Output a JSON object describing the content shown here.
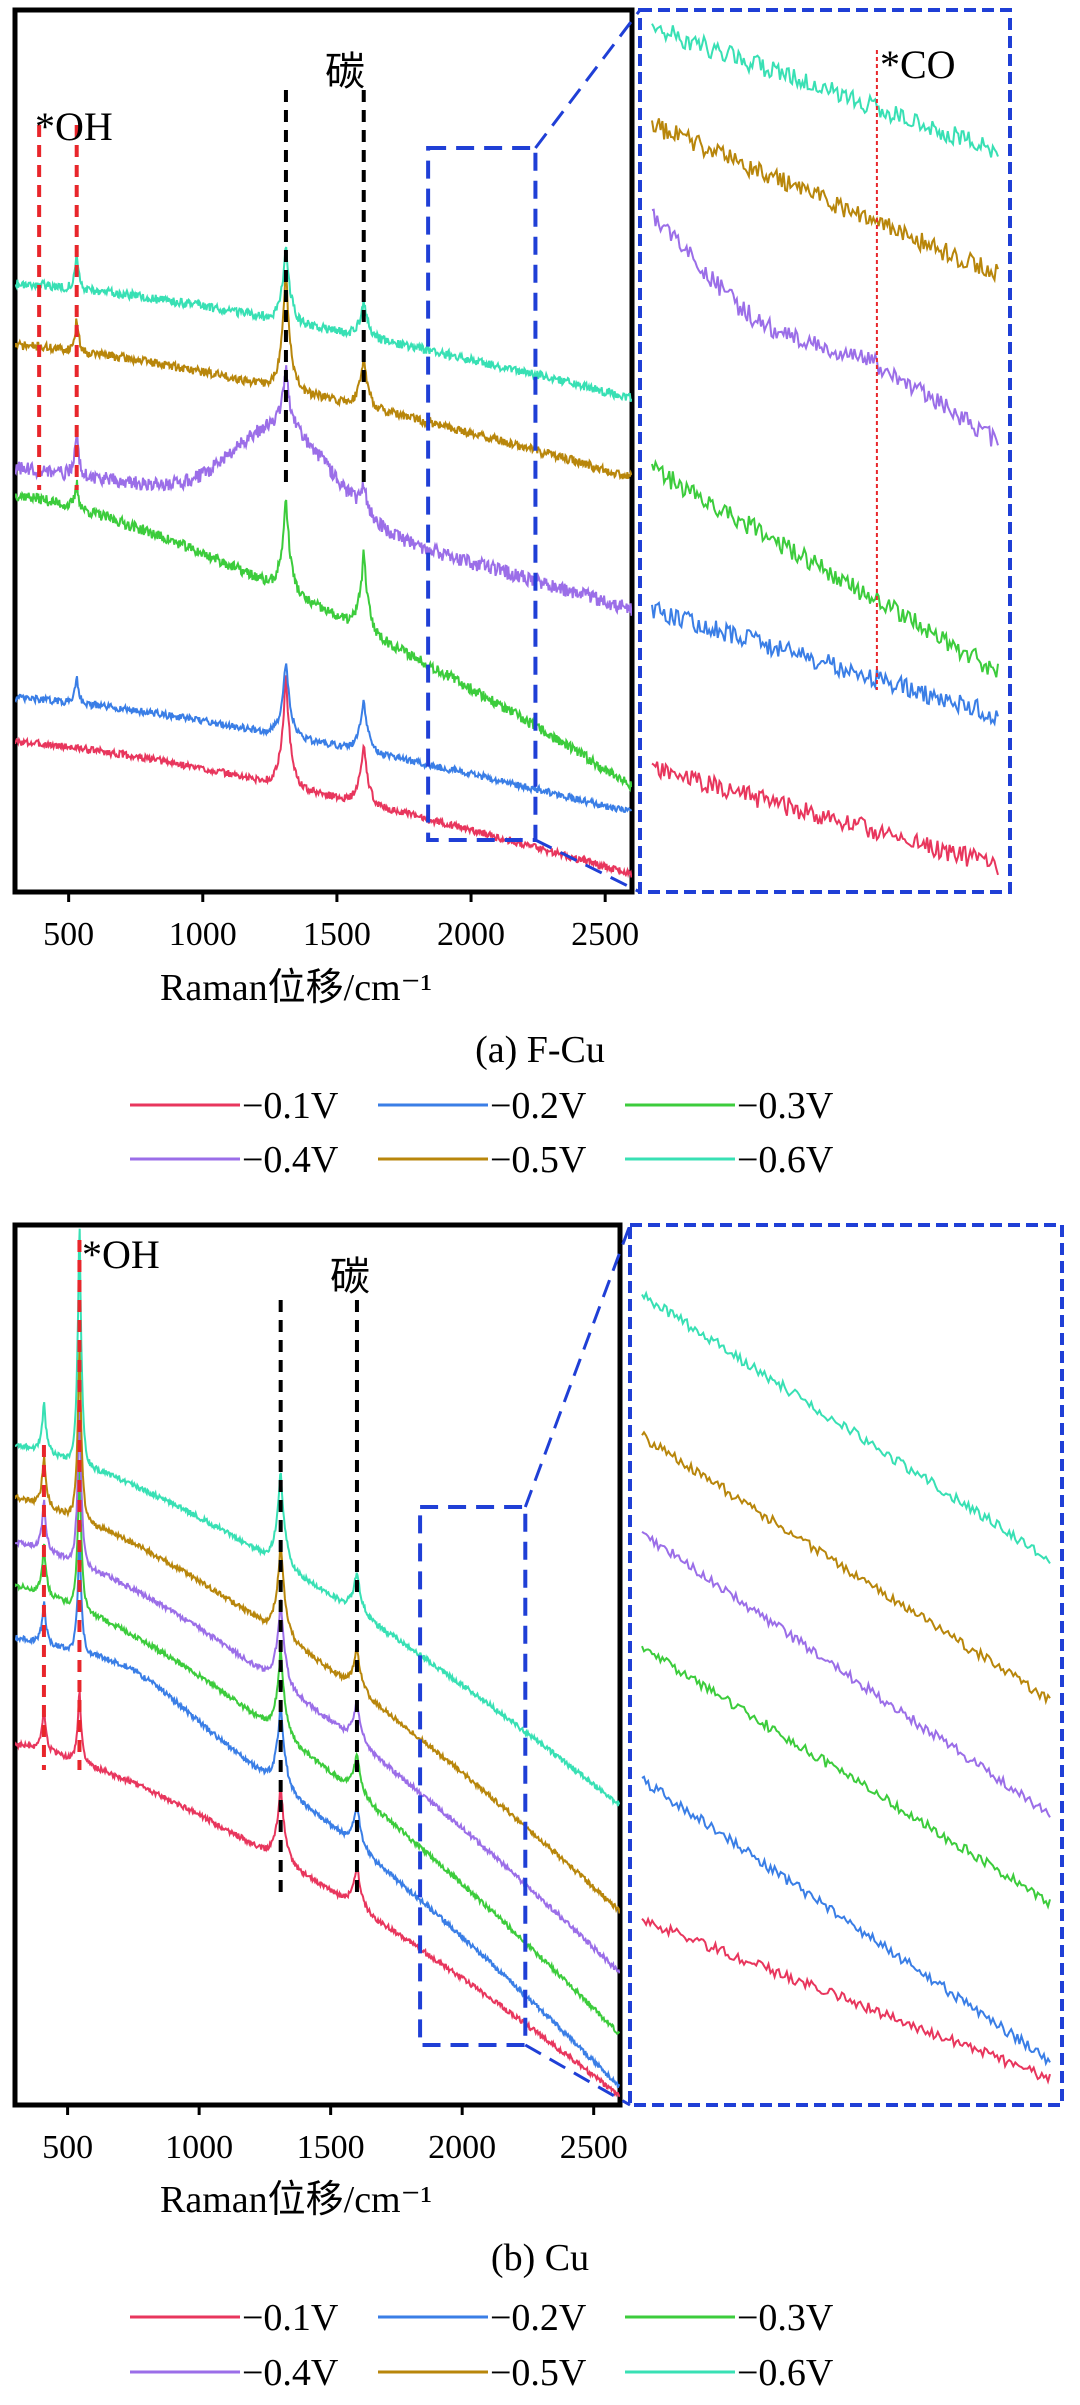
{
  "chart_data": [
    {
      "id": "a",
      "type": "line",
      "caption": "(a) F-Cu",
      "xlabel": "Raman位移/cm⁻¹",
      "ylabel": "",
      "xlim": [
        300,
        2600
      ],
      "xticks": [
        "500",
        "1000",
        "1500",
        "2000",
        "2500"
      ],
      "xtick_values": [
        500,
        1000,
        1500,
        2000,
        2500
      ],
      "ylim": [
        0,
        1
      ],
      "annotations": [
        "*OH",
        "碳",
        "*CO"
      ],
      "ref_lines": [
        {
          "x": 390,
          "color": "red"
        },
        {
          "x": 530,
          "color": "red"
        },
        {
          "x": 1310,
          "color": "black"
        },
        {
          "x": 1600,
          "color": "black"
        }
      ],
      "zoom_range": [
        1840,
        2240
      ],
      "zoom_marker_x": 2100,
      "series": [
        {
          "name": "−0.1V",
          "color": "#e8365d",
          "start": 0.17,
          "end": 0.02,
          "peaks": [
            [
              1310,
              0.13
            ],
            [
              1600,
              0.07
            ]
          ],
          "oh": [
            0,
            0
          ],
          "hump": [
            0,
            0
          ],
          "noise": 0.004
        },
        {
          "name": "−0.2V",
          "color": "#3a7ee6",
          "start": 0.22,
          "end": 0.09,
          "peaks": [
            [
              1310,
              0.09
            ],
            [
              1600,
              0.06
            ]
          ],
          "oh": [
            0,
            0.035
          ],
          "hump": [
            0,
            0
          ],
          "noise": 0.004
        },
        {
          "name": "−0.3V",
          "color": "#3ccc3c",
          "start": 0.45,
          "end": 0.12,
          "peaks": [
            [
              1310,
              0.11
            ],
            [
              1600,
              0.09
            ]
          ],
          "oh": [
            0,
            0.03
          ],
          "hump": [
            0,
            0
          ],
          "noise": 0.006
        },
        {
          "name": "−0.4V",
          "color": "#9b6ee8",
          "start": 0.48,
          "end": 0.32,
          "peaks": [
            [
              1310,
              0.07
            ],
            [
              1600,
              0.03
            ]
          ],
          "oh": [
            0,
            0.06
          ],
          "hump": [
            1300,
            0.1
          ],
          "noise": 0.008
        },
        {
          "name": "−0.5V",
          "color": "#b8860b",
          "start": 0.62,
          "end": 0.47,
          "peaks": [
            [
              1310,
              0.14
            ],
            [
              1600,
              0.06
            ]
          ],
          "oh": [
            0,
            0.04
          ],
          "hump": [
            0,
            0
          ],
          "noise": 0.005
        },
        {
          "name": "−0.6V",
          "color": "#38e0b4",
          "start": 0.69,
          "end": 0.56,
          "peaks": [
            [
              1310,
              0.09
            ],
            [
              1600,
              0.04
            ]
          ],
          "oh": [
            0,
            0.04
          ],
          "hump": [
            0,
            0
          ],
          "noise": 0.005
        }
      ]
    },
    {
      "id": "b",
      "type": "line",
      "caption": "(b) Cu",
      "xlabel": "Raman位移/cm⁻¹",
      "ylabel": "",
      "xlim": [
        300,
        2600
      ],
      "xticks": [
        "500",
        "1000",
        "1500",
        "2000",
        "2500"
      ],
      "xtick_values": [
        500,
        1000,
        1500,
        2000,
        2500
      ],
      "ylim": [
        0,
        1
      ],
      "annotations": [
        "*OH",
        "碳"
      ],
      "ref_lines": [
        {
          "x": 410,
          "color": "red"
        },
        {
          "x": 545,
          "color": "red"
        },
        {
          "x": 1310,
          "color": "black"
        },
        {
          "x": 1600,
          "color": "black"
        }
      ],
      "zoom_range": [
        1840,
        2240
      ],
      "series": [
        {
          "name": "−0.1V",
          "color": "#e8365d",
          "start": 0.41,
          "end": 0.01,
          "peaks": [
            [
              1310,
              0.09
            ],
            [
              1600,
              0.05
            ]
          ],
          "oh": [
            0.05,
            0.09
          ],
          "hump": [
            0,
            0
          ],
          "noise": 0.003
        },
        {
          "name": "−0.2V",
          "color": "#3a7ee6",
          "start": 0.53,
          "end": 0.02,
          "peaks": [
            [
              1310,
              0.1
            ],
            [
              1600,
              0.05
            ]
          ],
          "oh": [
            0.05,
            0.14
          ],
          "hump": [
            750,
            0.02
          ],
          "noise": 0.003
        },
        {
          "name": "−0.3V",
          "color": "#3ccc3c",
          "start": 0.59,
          "end": 0.08,
          "peaks": [
            [
              1310,
              0.1
            ],
            [
              1600,
              0.05
            ]
          ],
          "oh": [
            0.06,
            0.18
          ],
          "hump": [
            0,
            0
          ],
          "noise": 0.003
        },
        {
          "name": "−0.4V",
          "color": "#9b6ee8",
          "start": 0.64,
          "end": 0.15,
          "peaks": [
            [
              1310,
              0.1
            ],
            [
              1600,
              0.05
            ]
          ],
          "oh": [
            0.06,
            0.2
          ],
          "hump": [
            0,
            0
          ],
          "noise": 0.003
        },
        {
          "name": "−0.5V",
          "color": "#b8860b",
          "start": 0.69,
          "end": 0.22,
          "peaks": [
            [
              1310,
              0.11
            ],
            [
              1600,
              0.05
            ]
          ],
          "oh": [
            0.06,
            0.22
          ],
          "hump": [
            0,
            0
          ],
          "noise": 0.003
        },
        {
          "name": "−0.6V",
          "color": "#38e0b4",
          "start": 0.75,
          "end": 0.34,
          "peaks": [
            [
              1310,
              0.11
            ],
            [
              1600,
              0.05
            ]
          ],
          "oh": [
            0.06,
            0.3
          ],
          "hump": [
            0,
            0
          ],
          "noise": 0.003
        }
      ]
    }
  ]
}
